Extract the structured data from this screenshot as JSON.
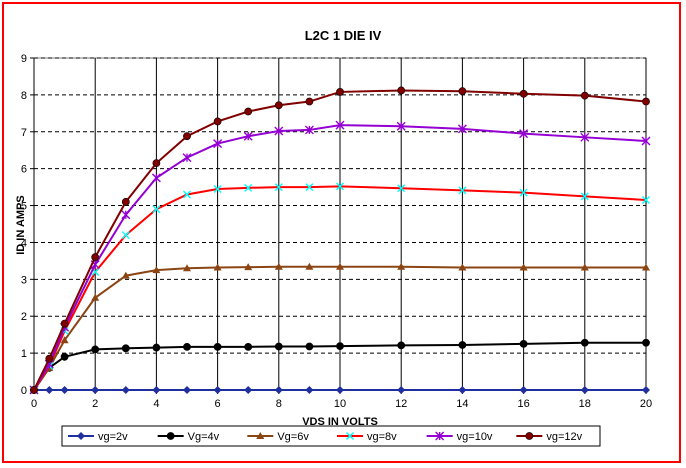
{
  "chart_data": {
    "type": "line",
    "title": "L2C 1 DIE IV",
    "xlabel": "VDS IN VOLTS",
    "ylabel": "ID IN AMPS",
    "xlim": [
      0,
      20
    ],
    "ylim": [
      0,
      9
    ],
    "x_ticks": [
      0,
      2,
      4,
      6,
      8,
      10,
      12,
      14,
      16,
      18,
      20
    ],
    "y_ticks": [
      0,
      1,
      2,
      3,
      4,
      5,
      6,
      7,
      8,
      9
    ],
    "grid": true,
    "legend_position": "bottom",
    "series": [
      {
        "name": "vg=2v",
        "color": "#1f2f9f",
        "marker": "diamond",
        "x": [
          0,
          0.5,
          1,
          2,
          3,
          4,
          5,
          6,
          7,
          8,
          9,
          10,
          12,
          14,
          16,
          18,
          20
        ],
        "y": [
          0,
          0,
          0,
          0,
          0,
          0,
          0,
          0,
          0,
          0,
          0,
          0,
          0,
          0,
          0,
          0,
          0
        ]
      },
      {
        "name": "Vg=4v",
        "color": "#000000",
        "marker": "circle",
        "x": [
          0,
          0.5,
          1,
          2,
          3,
          4,
          5,
          6,
          7,
          8,
          9,
          10,
          12,
          14,
          16,
          18,
          20
        ],
        "y": [
          0,
          0.6,
          0.9,
          1.1,
          1.13,
          1.15,
          1.17,
          1.17,
          1.17,
          1.18,
          1.18,
          1.19,
          1.21,
          1.22,
          1.25,
          1.28,
          1.28
        ]
      },
      {
        "name": "Vg=6v",
        "color": "#8b4513",
        "marker": "triangle",
        "x": [
          0,
          0.5,
          1,
          2,
          3,
          4,
          5,
          6,
          7,
          8,
          9,
          10,
          12,
          14,
          16,
          18,
          20
        ],
        "y": [
          0,
          0.6,
          1.35,
          2.5,
          3.1,
          3.25,
          3.3,
          3.32,
          3.33,
          3.34,
          3.34,
          3.34,
          3.34,
          3.32,
          3.32,
          3.32,
          3.32
        ]
      },
      {
        "name": "vg=8v",
        "color": "#ff0000",
        "marker": "none",
        "x": [
          0,
          0.5,
          1,
          2,
          3,
          4,
          5,
          6,
          7,
          8,
          9,
          10,
          12,
          14,
          16,
          18,
          20
        ],
        "y": [
          0,
          0.65,
          1.6,
          3.2,
          4.2,
          4.9,
          5.3,
          5.45,
          5.48,
          5.5,
          5.5,
          5.52,
          5.47,
          5.41,
          5.35,
          5.25,
          5.15
        ]
      },
      {
        "name": "vg=10v",
        "color": "#9400d3",
        "marker": "star",
        "x": [
          0,
          0.5,
          1,
          2,
          3,
          4,
          5,
          6,
          7,
          8,
          9,
          10,
          12,
          14,
          16,
          18,
          20
        ],
        "y": [
          0,
          0.7,
          1.7,
          3.4,
          4.75,
          5.75,
          6.3,
          6.68,
          6.88,
          7.02,
          7.05,
          7.18,
          7.15,
          7.08,
          6.95,
          6.85,
          6.75
        ]
      },
      {
        "name": "vg=12v",
        "color": "#800000",
        "marker": "circle",
        "x": [
          0,
          0.5,
          1,
          2,
          3,
          4,
          5,
          6,
          7,
          8,
          9,
          10,
          12,
          14,
          16,
          18,
          20
        ],
        "y": [
          0,
          0.85,
          1.8,
          3.6,
          5.1,
          6.15,
          6.88,
          7.28,
          7.55,
          7.72,
          7.82,
          8.08,
          8.12,
          8.1,
          8.03,
          7.98,
          7.82
        ]
      }
    ],
    "extra_series_colors": {
      "vg=8v_marker": "#00ffff"
    }
  }
}
